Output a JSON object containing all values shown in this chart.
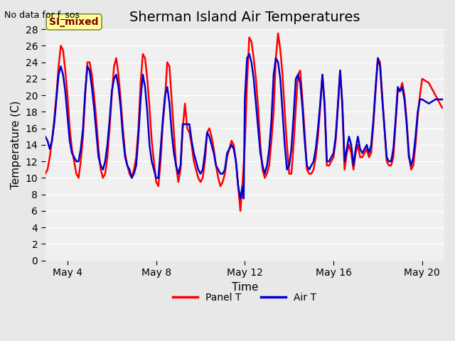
{
  "title": "Sherman Island Air Temperatures",
  "xlabel": "Time",
  "ylabel": "Temperature (C)",
  "top_left_text": "No data for f_sos",
  "legend_label_text": "SI_mixed",
  "ylim": [
    0,
    28
  ],
  "yticks": [
    0,
    2,
    4,
    6,
    8,
    10,
    12,
    14,
    16,
    18,
    20,
    22,
    24,
    26,
    28
  ],
  "xstart_day": 3,
  "xend_day": 21,
  "xtick_days": [
    4,
    8,
    12,
    16,
    20
  ],
  "xtick_labels": [
    "May 4",
    "May 8",
    "May 12",
    "May 16",
    "May 20"
  ],
  "panel_t_color": "#ff0000",
  "air_t_color": "#0000cc",
  "background_color": "#e8e8e8",
  "plot_bg_color": "#f0f0f0",
  "grid_color": "#ffffff",
  "title_fontsize": 14,
  "axis_label_fontsize": 11,
  "tick_fontsize": 10,
  "line_width": 1.8,
  "legend_box_color": "#ffff99",
  "legend_text_color": "#800000",
  "panel_t_x": [
    3.0,
    3.1,
    3.2,
    3.3,
    3.4,
    3.5,
    3.6,
    3.7,
    3.8,
    3.9,
    4.0,
    4.1,
    4.2,
    4.3,
    4.4,
    4.5,
    4.6,
    4.7,
    4.8,
    4.9,
    5.0,
    5.1,
    5.2,
    5.3,
    5.4,
    5.5,
    5.6,
    5.7,
    5.8,
    5.9,
    6.0,
    6.1,
    6.2,
    6.3,
    6.4,
    6.5,
    6.6,
    6.7,
    6.8,
    6.9,
    7.0,
    7.1,
    7.2,
    7.3,
    7.4,
    7.5,
    7.6,
    7.7,
    7.8,
    7.9,
    8.0,
    8.1,
    8.2,
    8.3,
    8.4,
    8.5,
    8.6,
    8.7,
    8.8,
    8.9,
    9.0,
    9.1,
    9.2,
    9.3,
    9.4,
    9.5,
    9.6,
    9.7,
    9.8,
    9.9,
    10.0,
    10.1,
    10.2,
    10.3,
    10.4,
    10.5,
    10.6,
    10.7,
    10.8,
    10.9,
    11.0,
    11.1,
    11.2,
    11.3,
    11.4,
    11.5,
    11.6,
    11.7,
    11.8,
    11.9,
    12.0,
    12.1,
    12.2,
    12.3,
    12.4,
    12.5,
    12.6,
    12.7,
    12.8,
    12.9,
    13.0,
    13.1,
    13.2,
    13.3,
    13.4,
    13.5,
    13.6,
    13.7,
    13.8,
    13.9,
    14.0,
    14.1,
    14.2,
    14.3,
    14.4,
    14.5,
    14.6,
    14.7,
    14.8,
    14.9,
    15.0,
    15.1,
    15.2,
    15.3,
    15.4,
    15.5,
    15.6,
    15.7,
    15.8,
    15.9,
    16.0,
    16.1,
    16.2,
    16.3,
    16.4,
    16.5,
    16.6,
    16.7,
    16.8,
    16.9,
    17.0,
    17.1,
    17.2,
    17.3,
    17.4,
    17.5,
    17.6,
    17.7,
    17.8,
    17.9,
    18.0,
    18.1,
    18.2,
    18.3,
    18.4,
    18.5,
    18.6,
    18.7,
    18.8,
    18.9,
    19.0,
    19.1,
    19.2,
    19.3,
    19.4,
    19.5,
    19.6,
    19.7,
    19.8,
    19.9,
    20.0,
    20.3,
    20.6,
    20.9
  ],
  "panel_t_y": [
    10.5,
    11.0,
    12.5,
    14.5,
    17.0,
    20.0,
    23.5,
    26.0,
    25.5,
    23.0,
    20.0,
    16.0,
    13.5,
    12.0,
    10.5,
    10.0,
    12.0,
    15.0,
    20.0,
    24.0,
    24.0,
    22.5,
    20.0,
    17.0,
    13.5,
    11.0,
    10.0,
    10.5,
    12.5,
    16.0,
    20.0,
    23.5,
    24.5,
    22.5,
    19.5,
    16.0,
    13.0,
    11.5,
    10.5,
    10.0,
    11.0,
    12.5,
    16.0,
    21.5,
    25.0,
    24.5,
    22.0,
    18.5,
    14.5,
    12.0,
    9.5,
    9.0,
    12.0,
    16.5,
    19.5,
    24.0,
    23.5,
    19.5,
    15.5,
    11.5,
    9.5,
    11.0,
    16.0,
    19.0,
    16.0,
    15.5,
    14.0,
    12.0,
    11.0,
    10.0,
    9.5,
    10.0,
    12.0,
    15.5,
    16.0,
    15.0,
    13.5,
    11.5,
    10.0,
    9.0,
    9.5,
    10.5,
    12.5,
    13.5,
    14.5,
    14.0,
    12.0,
    9.0,
    6.0,
    9.5,
    14.0,
    21.5,
    27.0,
    26.5,
    24.5,
    22.0,
    18.5,
    14.0,
    11.0,
    10.0,
    10.5,
    11.5,
    14.5,
    18.0,
    24.5,
    27.5,
    25.5,
    22.5,
    18.0,
    14.0,
    10.5,
    10.5,
    14.0,
    18.5,
    22.5,
    23.0,
    19.5,
    15.5,
    11.0,
    10.5,
    10.5,
    11.0,
    12.5,
    15.0,
    18.5,
    22.5,
    18.5,
    11.5,
    11.5,
    12.0,
    12.5,
    14.5,
    18.5,
    23.0,
    18.5,
    11.0,
    13.0,
    14.0,
    13.0,
    11.0,
    13.0,
    14.0,
    12.5,
    12.5,
    13.0,
    13.5,
    12.5,
    13.0,
    16.5,
    20.5,
    24.5,
    24.0,
    20.0,
    16.0,
    12.0,
    11.5,
    11.5,
    12.5,
    16.5,
    20.5,
    20.5,
    21.5,
    20.0,
    17.0,
    13.0,
    11.0,
    11.5,
    14.0,
    17.5,
    20.0,
    22.0,
    21.5,
    20.0,
    18.5
  ],
  "air_t_x": [
    3.0,
    3.1,
    3.2,
    3.3,
    3.4,
    3.5,
    3.6,
    3.7,
    3.8,
    3.9,
    4.0,
    4.1,
    4.2,
    4.3,
    4.4,
    4.5,
    4.6,
    4.7,
    4.8,
    4.9,
    5.0,
    5.1,
    5.2,
    5.3,
    5.4,
    5.5,
    5.6,
    5.7,
    5.8,
    5.9,
    6.0,
    6.1,
    6.2,
    6.3,
    6.4,
    6.5,
    6.6,
    6.7,
    6.8,
    6.9,
    7.0,
    7.1,
    7.2,
    7.3,
    7.4,
    7.5,
    7.6,
    7.7,
    7.8,
    7.9,
    8.0,
    8.1,
    8.2,
    8.3,
    8.4,
    8.5,
    8.6,
    8.7,
    8.8,
    8.9,
    9.0,
    9.1,
    9.2,
    9.3,
    9.4,
    9.5,
    9.6,
    9.7,
    9.8,
    9.9,
    10.0,
    10.1,
    10.2,
    10.3,
    10.4,
    10.5,
    10.6,
    10.7,
    10.8,
    10.9,
    11.0,
    11.1,
    11.2,
    11.3,
    11.4,
    11.5,
    11.6,
    11.7,
    11.8,
    11.9,
    11.95,
    12.0,
    12.1,
    12.2,
    12.3,
    12.4,
    12.5,
    12.6,
    12.7,
    12.8,
    12.9,
    13.0,
    13.1,
    13.2,
    13.3,
    13.4,
    13.5,
    13.6,
    13.7,
    13.8,
    13.9,
    14.0,
    14.1,
    14.2,
    14.3,
    14.4,
    14.5,
    14.6,
    14.7,
    14.8,
    14.9,
    15.0,
    15.1,
    15.2,
    15.3,
    15.4,
    15.5,
    15.6,
    15.7,
    15.8,
    15.9,
    16.0,
    16.1,
    16.2,
    16.3,
    16.4,
    16.5,
    16.6,
    16.7,
    16.8,
    16.9,
    17.0,
    17.1,
    17.2,
    17.3,
    17.4,
    17.5,
    17.6,
    17.7,
    17.8,
    17.9,
    18.0,
    18.1,
    18.2,
    18.3,
    18.4,
    18.5,
    18.6,
    18.7,
    18.8,
    18.9,
    19.0,
    19.1,
    19.2,
    19.3,
    19.4,
    19.5,
    19.6,
    19.7,
    19.8,
    19.9,
    20.0,
    20.3,
    20.6,
    20.9
  ],
  "air_t_y": [
    15.0,
    14.5,
    13.5,
    14.5,
    16.5,
    19.5,
    22.5,
    23.5,
    22.5,
    20.5,
    17.5,
    14.5,
    13.0,
    12.5,
    12.0,
    12.0,
    13.5,
    16.0,
    20.5,
    23.5,
    23.0,
    21.0,
    18.5,
    15.5,
    12.5,
    11.5,
    11.0,
    12.0,
    14.0,
    17.0,
    20.5,
    22.0,
    22.5,
    21.0,
    18.5,
    15.0,
    12.5,
    11.5,
    11.0,
    10.0,
    10.5,
    11.5,
    15.0,
    19.5,
    22.5,
    21.0,
    18.0,
    14.0,
    12.0,
    11.0,
    10.0,
    10.0,
    13.5,
    17.0,
    20.0,
    21.0,
    19.0,
    15.5,
    13.0,
    11.5,
    10.5,
    11.5,
    16.5,
    16.5,
    16.5,
    16.5,
    14.5,
    13.0,
    12.0,
    11.0,
    10.5,
    11.0,
    13.0,
    15.5,
    15.0,
    14.0,
    13.0,
    11.5,
    11.0,
    10.5,
    10.5,
    11.0,
    13.0,
    13.5,
    14.0,
    13.5,
    12.0,
    9.0,
    7.5,
    9.0,
    7.5,
    19.5,
    24.5,
    25.0,
    24.0,
    22.0,
    19.0,
    16.0,
    13.0,
    11.5,
    10.5,
    11.5,
    13.5,
    17.0,
    22.5,
    24.5,
    24.0,
    22.0,
    18.0,
    14.0,
    11.0,
    11.5,
    13.5,
    17.5,
    22.0,
    22.5,
    21.5,
    18.5,
    14.5,
    11.5,
    11.0,
    11.5,
    12.0,
    13.5,
    16.0,
    19.0,
    22.5,
    19.0,
    12.0,
    12.0,
    12.5,
    13.0,
    15.0,
    19.0,
    23.0,
    19.0,
    12.0,
    13.5,
    15.0,
    14.0,
    11.5,
    13.5,
    15.0,
    13.5,
    13.0,
    13.5,
    14.0,
    13.0,
    14.0,
    17.0,
    21.0,
    24.5,
    23.5,
    19.5,
    16.0,
    12.5,
    12.0,
    12.0,
    13.5,
    17.0,
    21.0,
    20.5,
    21.0,
    19.5,
    16.5,
    12.5,
    11.5,
    12.5,
    15.0,
    18.0,
    19.5,
    19.5,
    19.0,
    19.5,
    19.5
  ]
}
